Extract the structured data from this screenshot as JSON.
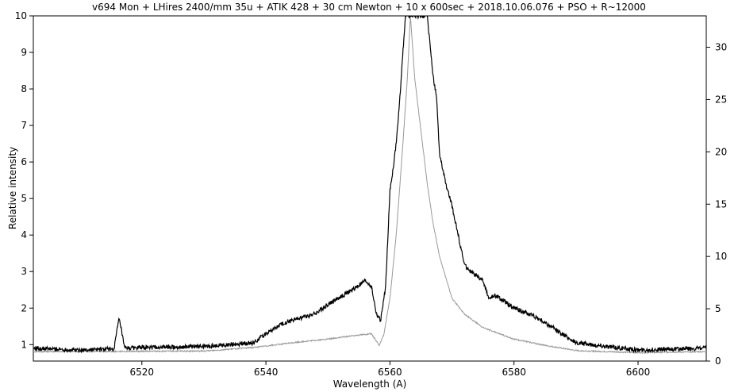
{
  "chart_data": {
    "type": "line",
    "title": "v694 Mon  + LHires 2400/mm 35u  + ATIK 428 + 30 cm Newton + 10 x 600sec + 2018.10.06.076 + PSO + R~12000",
    "xlabel": "Wavelength (A)",
    "ylabel": "Relative intensity",
    "xlim": [
      6502.5,
      6611
    ],
    "ylim": [
      0.55,
      10
    ],
    "y2lim": [
      0,
      33
    ],
    "x_ticks": [
      "6520",
      "6540",
      "6560",
      "6580",
      "6600"
    ],
    "y_ticks": [
      "1",
      "2",
      "3",
      "4",
      "5",
      "6",
      "7",
      "8",
      "9",
      "10"
    ],
    "y2_ticks": [
      "0",
      "5",
      "10",
      "15",
      "20",
      "25",
      "30"
    ],
    "grid": false,
    "series": [
      {
        "axis": "left",
        "color": "#000000",
        "x": [
          6502.5,
          6510,
          6515.5,
          6516,
          6516.3,
          6516.6,
          6517.2,
          6520,
          6530,
          6538,
          6540,
          6543,
          6545,
          6548,
          6550,
          6552,
          6554,
          6556,
          6557,
          6557.8,
          6558.5,
          6559.3,
          6560,
          6560.5,
          6561,
          6561.5,
          6562,
          6562.5,
          6566,
          6567,
          6567.5,
          6568,
          6569,
          6570,
          6571,
          6572,
          6573,
          6575,
          6576,
          6577,
          6580,
          6583,
          6585,
          6590,
          6600,
          6611
        ],
        "y": [
          0.9,
          0.85,
          0.88,
          1.4,
          1.7,
          1.5,
          0.9,
          0.92,
          0.95,
          1.05,
          1.3,
          1.6,
          1.7,
          1.85,
          2.1,
          2.3,
          2.5,
          2.75,
          2.6,
          1.85,
          1.65,
          2.6,
          5.2,
          5.8,
          6.5,
          7.5,
          8.8,
          10,
          10,
          8.3,
          7.8,
          6.2,
          5.4,
          4.8,
          4.0,
          3.2,
          3.0,
          2.75,
          2.25,
          2.35,
          2.0,
          1.8,
          1.6,
          1.05,
          0.85,
          0.9
        ]
      },
      {
        "axis": "right",
        "color": "#999999",
        "x": [
          6502.5,
          6530,
          6538,
          6545,
          6550,
          6555,
          6557,
          6558.3,
          6559,
          6560,
          6561,
          6562,
          6562.8,
          6563.3,
          6564,
          6565,
          6566,
          6567,
          6568,
          6570,
          6572,
          6575,
          6580,
          6585,
          6590,
          6600,
          6611
        ],
        "y": [
          0.9,
          0.95,
          1.3,
          1.8,
          2.1,
          2.5,
          2.6,
          1.5,
          2.5,
          6,
          12,
          20,
          27,
          33,
          27,
          22,
          17,
          13,
          10,
          6,
          4.5,
          3.2,
          2.1,
          1.5,
          1.0,
          0.8,
          0.9
        ]
      }
    ]
  }
}
